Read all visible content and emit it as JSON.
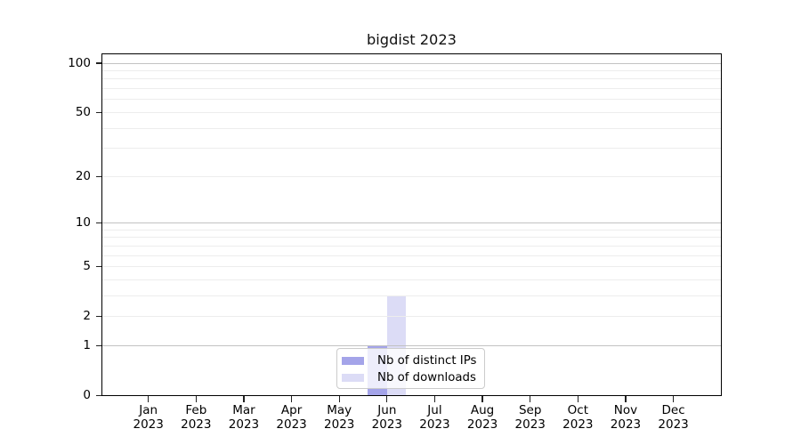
{
  "chart_data": {
    "type": "bar",
    "title": "bigdist 2023",
    "categories": [
      "Jan",
      "Feb",
      "Mar",
      "Apr",
      "May",
      "Jun",
      "Jul",
      "Aug",
      "Sep",
      "Oct",
      "Nov",
      "Dec"
    ],
    "category_year": "2023",
    "series": [
      {
        "name": "Nb of distinct IPs",
        "color": "#a4a4e9",
        "values": [
          0,
          0,
          0,
          0,
          0,
          1,
          0,
          0,
          0,
          0,
          0,
          0
        ]
      },
      {
        "name": "Nb of downloads",
        "color": "#dcdcf6",
        "values": [
          0,
          0,
          0,
          0,
          0,
          3,
          0,
          0,
          0,
          0,
          0,
          0
        ]
      }
    ],
    "xlabel": "",
    "ylabel": "",
    "yscale": "log1p",
    "ylim": [
      0,
      115
    ],
    "y_tick_values": [
      0,
      1,
      2,
      5,
      10,
      20,
      50,
      100
    ],
    "y_major_gridlines": [
      1,
      10,
      100
    ],
    "y_minor_gridlines": [
      2,
      3,
      4,
      5,
      6,
      7,
      8,
      9,
      20,
      30,
      40,
      50,
      60,
      70,
      80,
      90
    ],
    "grid": "horizontal",
    "legend_position": "lower center"
  }
}
